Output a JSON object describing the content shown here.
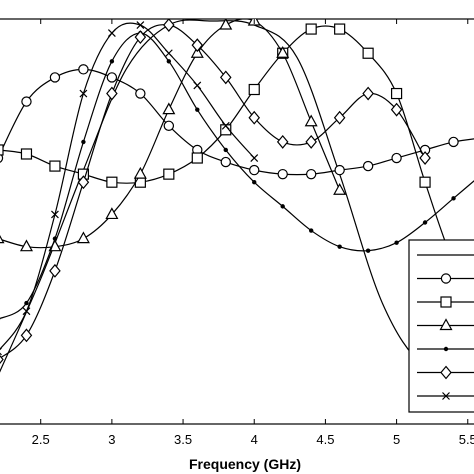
{
  "chart_data": {
    "type": "line",
    "title": "",
    "xlabel": "Frequency (GHz)",
    "ylabel": "",
    "xlim": [
      2.2,
      5.6
    ],
    "ylim": [
      0,
      1
    ],
    "xticks": [
      "2.5",
      "3",
      "3.5",
      "4",
      "4.5",
      "5",
      "5.5"
    ],
    "xtick_values": [
      2.5,
      3,
      3.5,
      4,
      4.5,
      5,
      5.5
    ],
    "grid": false,
    "legend_placement": "bottom-right",
    "series": [
      {
        "marker": "none",
        "x": [
          2.2,
          2.5,
          2.8,
          3.1,
          3.4,
          3.7,
          4.0,
          4.3,
          4.6,
          4.9,
          5.2,
          5.6
        ],
        "y": [
          0.12,
          0.36,
          0.63,
          0.88,
          0.99,
          1.0,
          0.99,
          0.91,
          0.62,
          0.3,
          0.14,
          0.08
        ]
      },
      {
        "marker": "circle",
        "x": [
          2.2,
          2.4,
          2.6,
          2.8,
          3.0,
          3.2,
          3.4,
          3.6,
          3.8,
          4.0,
          4.2,
          4.4,
          4.6,
          4.8,
          5.0,
          5.2,
          5.4,
          5.6
        ],
        "y": [
          0.66,
          0.8,
          0.86,
          0.88,
          0.86,
          0.82,
          0.74,
          0.68,
          0.65,
          0.63,
          0.62,
          0.62,
          0.63,
          0.64,
          0.66,
          0.68,
          0.7,
          0.71
        ]
      },
      {
        "marker": "square",
        "x": [
          2.2,
          2.4,
          2.6,
          2.8,
          3.0,
          3.2,
          3.4,
          3.6,
          3.8,
          4.0,
          4.2,
          4.4,
          4.6,
          4.8,
          5.0,
          5.2,
          5.4,
          5.6
        ],
        "y": [
          0.68,
          0.67,
          0.64,
          0.62,
          0.6,
          0.6,
          0.62,
          0.66,
          0.73,
          0.83,
          0.92,
          0.98,
          0.98,
          0.92,
          0.82,
          0.6,
          0.4,
          0.28
        ]
      },
      {
        "marker": "triangle",
        "x": [
          2.2,
          2.4,
          2.6,
          2.8,
          3.0,
          3.2,
          3.4,
          3.6,
          3.8,
          4.0,
          4.2,
          4.4,
          4.6
        ],
        "y": [
          0.46,
          0.44,
          0.44,
          0.46,
          0.52,
          0.62,
          0.78,
          0.92,
          0.99,
          1.0,
          0.92,
          0.75,
          0.58
        ]
      },
      {
        "marker": "dot",
        "x": [
          2.2,
          2.4,
          2.6,
          2.8,
          3.0,
          3.2,
          3.4,
          3.6,
          3.8,
          4.0,
          4.2,
          4.4,
          4.6,
          4.8,
          5.0,
          5.2,
          5.4,
          5.6
        ],
        "y": [
          0.26,
          0.3,
          0.46,
          0.7,
          0.9,
          0.97,
          0.9,
          0.78,
          0.68,
          0.6,
          0.54,
          0.48,
          0.44,
          0.43,
          0.45,
          0.5,
          0.56,
          0.62
        ]
      },
      {
        "marker": "diamond",
        "x": [
          2.2,
          2.4,
          2.6,
          2.8,
          3.0,
          3.2,
          3.4,
          3.6,
          3.8,
          4.0,
          4.2,
          4.4,
          4.6,
          4.8,
          5.0,
          5.2
        ],
        "y": [
          0.16,
          0.22,
          0.38,
          0.6,
          0.82,
          0.96,
          0.99,
          0.94,
          0.86,
          0.76,
          0.7,
          0.7,
          0.76,
          0.82,
          0.78,
          0.66
        ]
      },
      {
        "marker": "x",
        "x": [
          2.2,
          2.4,
          2.6,
          2.8,
          3.0,
          3.2,
          3.4,
          3.6,
          3.8,
          4.0
        ],
        "y": [
          0.18,
          0.28,
          0.52,
          0.82,
          0.97,
          0.99,
          0.92,
          0.84,
          0.74,
          0.66
        ]
      }
    ],
    "legend_entries": [
      {
        "marker": "none"
      },
      {
        "marker": "circle"
      },
      {
        "marker": "square"
      },
      {
        "marker": "triangle"
      },
      {
        "marker": "dot"
      },
      {
        "marker": "diamond"
      },
      {
        "marker": "x"
      }
    ]
  }
}
